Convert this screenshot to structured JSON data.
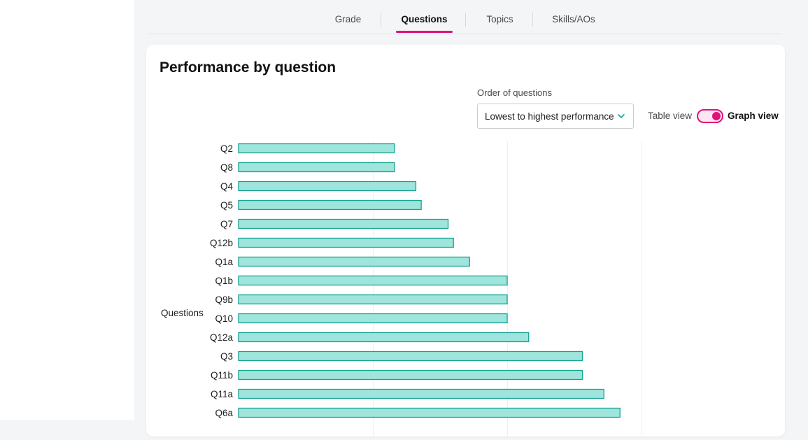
{
  "tabs": [
    {
      "label": "Grade",
      "active": false
    },
    {
      "label": "Questions",
      "active": true
    },
    {
      "label": "Topics",
      "active": false
    },
    {
      "label": "Skills/AOs",
      "active": false
    }
  ],
  "card": {
    "title": "Performance by question",
    "order_label": "Order of questions",
    "order_value": "Lowest to highest performance",
    "table_view_label": "Table view",
    "graph_view_label": "Graph view",
    "graph_view_on": true
  },
  "colors": {
    "accent": "#e0127a",
    "bar_fill": "#9fe5dc",
    "bar_stroke": "#16a393"
  },
  "chart_data": {
    "type": "bar",
    "orientation": "horizontal",
    "ylabel": "Questions",
    "xlabel": "",
    "xlim": [
      0,
      100
    ],
    "grid": true,
    "categories": [
      "Q2",
      "Q8",
      "Q4",
      "Q5",
      "Q7",
      "Q12b",
      "Q1a",
      "Q1b",
      "Q9b",
      "Q10",
      "Q12a",
      "Q3",
      "Q11b",
      "Q11a",
      "Q6a"
    ],
    "values": [
      29,
      29,
      33,
      34,
      39,
      40,
      43,
      50,
      50,
      50,
      54,
      64,
      64,
      68,
      71
    ]
  }
}
